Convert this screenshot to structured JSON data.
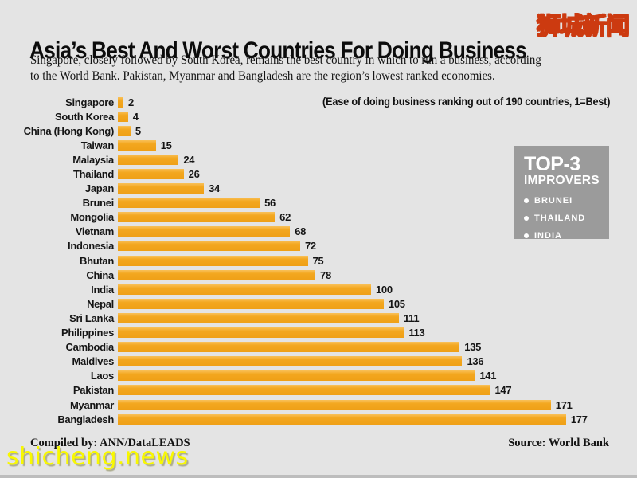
{
  "header": {
    "title": "Asia’s Best And Worst Countries For Doing Business",
    "subtitle_line1": "Singapore, closely followed by South Korea, remains the best country in which to run a business, according",
    "subtitle_line2": "to the World Bank. Pakistan, Myanmar and Bangladesh are the region’s lowest ranked economies."
  },
  "chart_note": "(Ease of doing business ranking out of 190 countries, 1=Best)",
  "chart_data": {
    "type": "bar",
    "orientation": "horizontal",
    "title": "Ease of doing business ranking out of 190 countries, 1=Best",
    "categories": [
      "Singapore",
      "South Korea",
      "China (Hong Kong)",
      "Taiwan",
      "Malaysia",
      "Thailand",
      "Japan",
      "Brunei",
      "Mongolia",
      "Vietnam",
      "Indonesia",
      "Bhutan",
      "China",
      "India",
      "Nepal",
      "Sri Lanka",
      "Philippines",
      "Cambodia",
      "Maldives",
      "Laos",
      "Pakistan",
      "Myanmar",
      "Bangladesh"
    ],
    "values": [
      2,
      4,
      5,
      15,
      24,
      26,
      34,
      56,
      62,
      68,
      72,
      75,
      78,
      100,
      105,
      111,
      113,
      135,
      136,
      141,
      147,
      171,
      177
    ],
    "xlim": [
      0,
      190
    ],
    "value_labels": true,
    "bar_color": "#F2A31C",
    "legend": "none",
    "grid": false
  },
  "top3": {
    "title": "TOP-3",
    "subtitle": "IMPROVERS",
    "items": [
      "BRUNEI",
      "THAILAND",
      "INDIA"
    ],
    "bg_color": "#9B9B9B"
  },
  "footer": {
    "compiled_by": "Compiled by: ANN/DataLEADS",
    "source": "Source: World Bank"
  },
  "watermarks": {
    "chinese": "狮城新闻",
    "site": "shicheng.news",
    "color": "#F2F200"
  },
  "colors": {
    "background": "#E4E4E4",
    "bar": "#F2A31C",
    "text": "#111111",
    "top3_box": "#9B9B9B"
  }
}
